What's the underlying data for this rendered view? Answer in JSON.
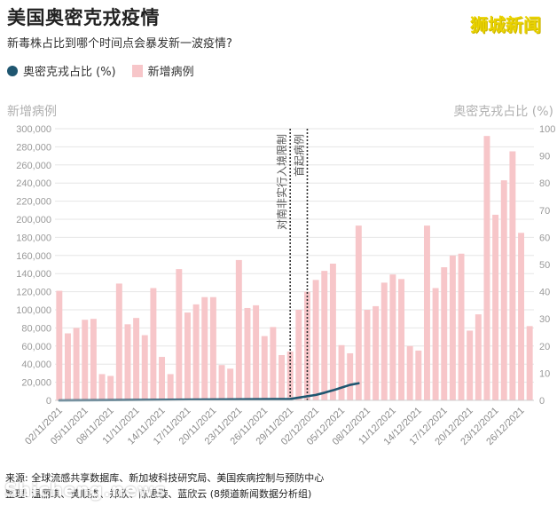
{
  "header": {
    "title": "美国奥密克戎疫情",
    "subtitle": "新毒株占比到哪个时间点会暴发新一波疫情?",
    "brand": "狮城新闻"
  },
  "legend": {
    "line_label": "奥密克戎占比 (%)",
    "bar_label": "新增病例"
  },
  "axes": {
    "left_title": "新增病例",
    "right_title": "奥密克戎占比 (%)",
    "left_ticks": [
      "0",
      "20,000",
      "40,000",
      "60,000",
      "80,000",
      "100,000",
      "120,000",
      "140,000",
      "160,000",
      "180,000",
      "200,000",
      "220,000",
      "240,000",
      "260,000",
      "280,000",
      "300,000"
    ],
    "right_ticks": [
      "0",
      "10",
      "20",
      "30",
      "40",
      "50",
      "60",
      "70",
      "80",
      "90",
      "100"
    ]
  },
  "annotations": {
    "line1": "对南非实行入境限制",
    "line2": "首起病例"
  },
  "footer": {
    "source": "来源: 全球流感共享数据库、新加坡科技研究局、美国疾病控制与预防中心",
    "credits": "整理: 温丽琪、黄顺杰、郑欣、陈思璇、蓝欣云 (8频道新闻数据分析组)",
    "watermark": "Shicheng.news"
  },
  "colors": {
    "bar": "#f7c6c9",
    "line": "#1f5670",
    "grid": "#e6e6e6"
  },
  "chart_data": {
    "type": "bar",
    "x_dates": [
      "02/11/2021",
      "03/11/2021",
      "04/11/2021",
      "05/11/2021",
      "06/11/2021",
      "07/11/2021",
      "08/11/2021",
      "09/11/2021",
      "10/11/2021",
      "11/11/2021",
      "12/11/2021",
      "13/11/2021",
      "14/11/2021",
      "15/11/2021",
      "16/11/2021",
      "17/11/2021",
      "18/11/2021",
      "19/11/2021",
      "20/11/2021",
      "21/11/2021",
      "22/11/2021",
      "23/11/2021",
      "24/11/2021",
      "25/11/2021",
      "26/11/2021",
      "27/11/2021",
      "28/11/2021",
      "29/11/2021",
      "30/11/2021",
      "01/12/2021",
      "02/12/2021",
      "03/12/2021",
      "04/12/2021",
      "05/12/2021",
      "06/12/2021",
      "07/12/2021",
      "08/12/2021",
      "09/12/2021",
      "10/12/2021",
      "11/12/2021",
      "12/12/2021",
      "13/12/2021",
      "14/12/2021",
      "15/12/2021",
      "16/12/2021",
      "17/12/2021",
      "18/12/2021",
      "19/12/2021",
      "20/12/2021",
      "21/12/2021",
      "22/12/2021",
      "23/12/2021",
      "24/12/2021",
      "25/12/2021",
      "26/12/2021",
      "27/12/2021"
    ],
    "x_tick_labels": [
      "02/11/2021",
      "05/11/2021",
      "08/11/2021",
      "11/11/2021",
      "14/11/2021",
      "17/11/2021",
      "20/11/2021",
      "23/11/2021",
      "26/11/2021",
      "29/11/2021",
      "02/12/2021",
      "05/12/2021",
      "08/12/2021",
      "11/12/2021",
      "14/12/2021",
      "17/12/2021",
      "20/12/2021",
      "23/12/2021",
      "26/12/2021"
    ],
    "series": [
      {
        "name": "新增病例",
        "type": "bar",
        "axis": "left",
        "values": [
          121000,
          74000,
          80000,
          89000,
          90000,
          29000,
          27000,
          129000,
          84000,
          91000,
          72000,
          124000,
          48000,
          29000,
          145000,
          97000,
          106000,
          114000,
          114000,
          39000,
          35000,
          155000,
          102000,
          105000,
          71000,
          81000,
          50000,
          54000,
          100000,
          120000,
          133000,
          143000,
          151000,
          61000,
          52000,
          193000,
          100000,
          104000,
          130000,
          139000,
          134000,
          60000,
          55000,
          193000,
          124000,
          147000,
          160000,
          162000,
          77000,
          95000,
          292000,
          205000,
          243000,
          275000,
          185000,
          82000
        ]
      },
      {
        "name": "奥密克戎占比 (%)",
        "type": "line",
        "axis": "right",
        "x": [
          "02/11/2021",
          "29/11/2021",
          "02/12/2021",
          "03/12/2021",
          "04/12/2021",
          "05/12/2021",
          "06/12/2021",
          "07/12/2021"
        ],
        "values": [
          0,
          0.5,
          2,
          2.8,
          3.7,
          4.7,
          5.7,
          6.3
        ]
      }
    ],
    "left_ylim": [
      0,
      300000
    ],
    "right_ylim": [
      0,
      100
    ],
    "reference_lines": [
      {
        "date": "29/11/2021",
        "label": "对南非实行入境限制",
        "style": "dotted"
      },
      {
        "date": "01/12/2021",
        "label": "首起病例",
        "style": "dotted"
      }
    ],
    "grid": true,
    "legend_position": "top-left"
  }
}
